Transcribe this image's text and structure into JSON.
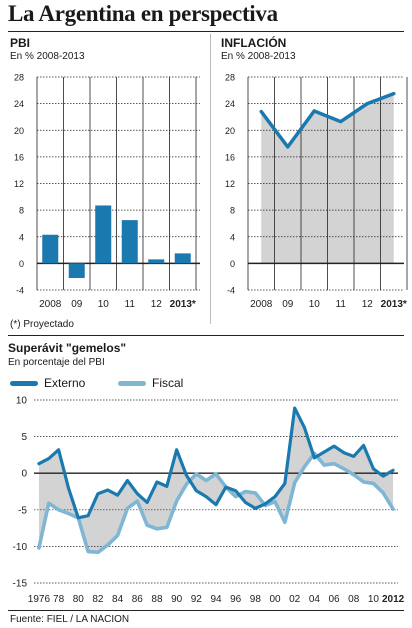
{
  "title": "La Argentina en perspectiva",
  "colors": {
    "dark": "#1a7ab0",
    "light": "#7fb6d4",
    "fill": "#d3d3d3",
    "grid": "#222222"
  },
  "note": "(*) Proyectado",
  "source": "Fuente: FIEL / LA NACION",
  "chart_data": [
    {
      "type": "bar",
      "title": "PBI",
      "subtitle": "En % 2008-2013",
      "categories": [
        "2008",
        "09",
        "10",
        "11",
        "12",
        "2013*"
      ],
      "values": [
        4.3,
        -2.2,
        8.7,
        6.5,
        0.6,
        1.5
      ],
      "ylim": [
        -4,
        28
      ],
      "yticks": [
        "28",
        "24",
        "20",
        "16",
        "12",
        "8",
        "4",
        "0",
        "-4"
      ],
      "grid": true
    },
    {
      "type": "area",
      "title": "INFLACIÓN",
      "subtitle": "En % 2008-2013",
      "categories": [
        "2008",
        "09",
        "10",
        "11",
        "12",
        "2013*"
      ],
      "values": [
        22.8,
        17.5,
        22.9,
        21.3,
        24.0,
        25.5
      ],
      "ylim": [
        -4,
        28
      ],
      "yticks": [
        "28",
        "24",
        "20",
        "16",
        "12",
        "8",
        "4",
        "0",
        "-4"
      ],
      "grid": true
    },
    {
      "type": "line",
      "title": "Superávit \"gemelos\"",
      "subtitle": "En porcentaje del PBI",
      "x": [
        1976,
        1977,
        1978,
        1979,
        1980,
        1981,
        1982,
        1983,
        1984,
        1985,
        1986,
        1987,
        1988,
        1989,
        1990,
        1991,
        1992,
        1993,
        1994,
        1995,
        1996,
        1997,
        1998,
        1999,
        2000,
        2001,
        2002,
        2003,
        2004,
        2005,
        2006,
        2007,
        2008,
        2009,
        2010,
        2011,
        2012
      ],
      "xticks": [
        "1976",
        "78",
        "80",
        "82",
        "84",
        "86",
        "88",
        "90",
        "92",
        "94",
        "96",
        "98",
        "00",
        "02",
        "04",
        "06",
        "08",
        "10",
        "2012"
      ],
      "yticks": [
        "10",
        "5",
        "0",
        "-5",
        "-10",
        "-15"
      ],
      "ylim": [
        -15,
        10
      ],
      "grid": true,
      "series": [
        {
          "name": "Externo",
          "values": [
            1.3,
            2.0,
            3.2,
            -2.0,
            -6.1,
            -5.8,
            -2.8,
            -2.3,
            -3.0,
            -1.0,
            -2.8,
            -4.0,
            -1.2,
            -1.8,
            3.2,
            -0.3,
            -2.4,
            -3.2,
            -4.3,
            -1.9,
            -2.4,
            -4.0,
            -4.8,
            -4.2,
            -3.2,
            -1.4,
            8.9,
            6.2,
            2.1,
            2.9,
            3.7,
            2.8,
            2.3,
            3.8,
            0.6,
            -0.4,
            0.4
          ]
        },
        {
          "name": "Fiscal",
          "values": [
            -10.2,
            -4.1,
            -5.0,
            -5.5,
            -6.1,
            -10.7,
            -10.8,
            -9.8,
            -8.5,
            -4.8,
            -3.8,
            -7.1,
            -7.6,
            -7.4,
            -3.8,
            -1.5,
            -0.1,
            -1.0,
            -0.1,
            -1.9,
            -3.2,
            -2.5,
            -2.7,
            -4.4,
            -3.9,
            -6.7,
            -1.3,
            0.9,
            2.7,
            1.1,
            1.3,
            0.6,
            -0.2,
            -1.2,
            -1.4,
            -2.7,
            -4.9
          ]
        }
      ]
    }
  ]
}
